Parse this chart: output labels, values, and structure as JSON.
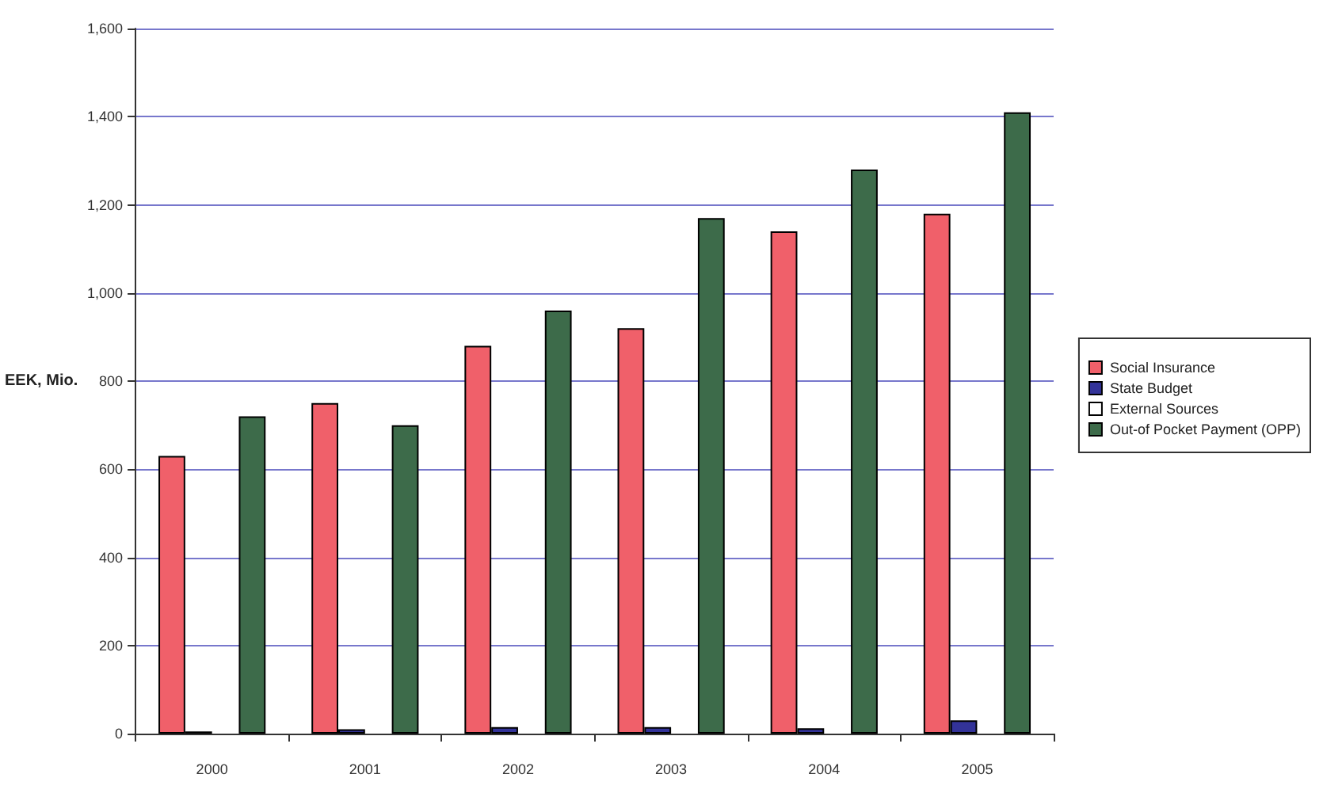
{
  "chart_data": {
    "type": "bar",
    "ylabel": "EEK, Mio.",
    "categories": [
      "2000",
      "2001",
      "2002",
      "2003",
      "2004",
      "2005"
    ],
    "series": [
      {
        "name": "Social Insurance",
        "color": "#f0606a",
        "values": [
          630,
          750,
          880,
          920,
          1140,
          1180
        ]
      },
      {
        "name": "State Budget",
        "color": "#333399",
        "values": [
          5,
          10,
          15,
          15,
          12,
          30
        ]
      },
      {
        "name": "External Sources",
        "color": "#ffffff",
        "values": [
          null,
          null,
          null,
          null,
          null,
          null
        ]
      },
      {
        "name": "Out-of Pocket Payment (OPP)",
        "color": "#3d6b4a",
        "values": [
          720,
          700,
          960,
          1170,
          1280,
          1410
        ]
      }
    ],
    "ylim": [
      0,
      1600
    ],
    "yticks": [
      0,
      200,
      400,
      600,
      800,
      {
        "value": 1000,
        "label": "1,000"
      },
      {
        "value": 1200,
        "label": "1,200"
      },
      {
        "value": 1400,
        "label": "1,400"
      },
      {
        "value": 1600,
        "label": "1,600"
      }
    ],
    "grid": true,
    "legend": "right"
  }
}
